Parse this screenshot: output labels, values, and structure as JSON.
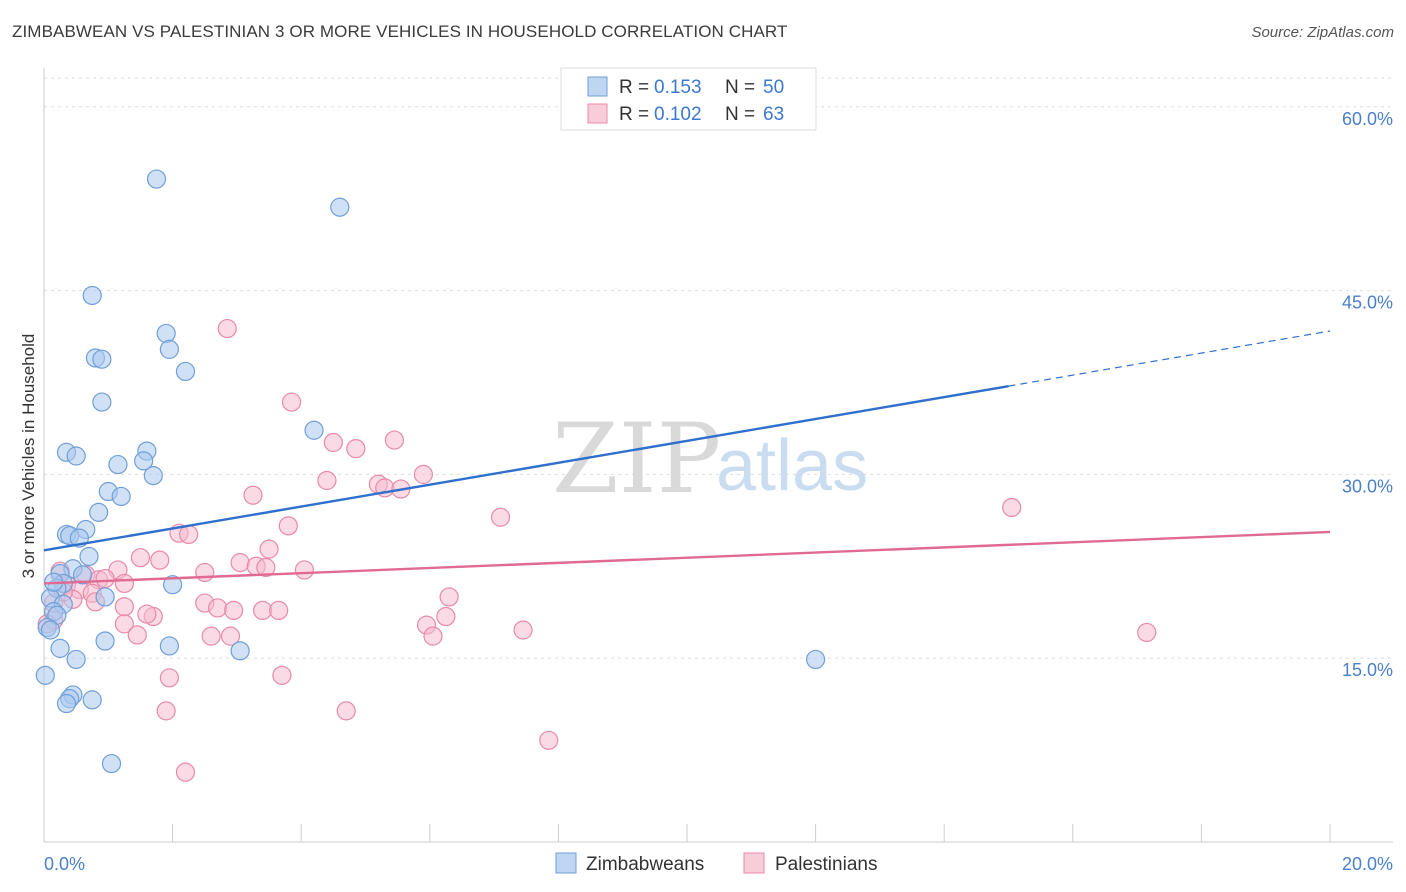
{
  "title": "ZIMBABWEAN VS PALESTINIAN 3 OR MORE VEHICLES IN HOUSEHOLD CORRELATION CHART",
  "source": "Source: ZipAtlas.com",
  "watermark": {
    "zip": "ZIP",
    "atlas": "atlas"
  },
  "colors": {
    "blue_fill": "#a9c8ef",
    "blue_stroke": "#6f9fd8",
    "blue_line": "#2f6fce",
    "pink_fill": "#f6bccd",
    "pink_stroke": "#e88aa8",
    "pink_line": "#e06a92",
    "grid": "#dddddd",
    "tick_text": "#4a7fc9"
  },
  "legend": {
    "rows": [
      {
        "r_label": "R = ",
        "r_value": "0.153",
        "n_label": "N = ",
        "n_value": "50",
        "color": "blue"
      },
      {
        "r_label": "R = ",
        "r_value": "0.102",
        "n_label": "N = ",
        "n_value": "63",
        "color": "pink"
      }
    ]
  },
  "chart_data": {
    "type": "scatter",
    "title": "ZIMBABWEAN VS PALESTINIAN 3 OR MORE VEHICLES IN HOUSEHOLD CORRELATION CHART",
    "xlabel": "",
    "ylabel": "3 or more Vehicles in Household",
    "xlim": [
      0,
      20
    ],
    "ylim": [
      0,
      63
    ],
    "x_tick_labels": [
      "0.0%",
      "20.0%"
    ],
    "y_ticks": [
      15,
      30,
      45,
      60
    ],
    "y_tick_labels": [
      "15.0%",
      "30.0%",
      "45.0%",
      "60.0%"
    ],
    "grid": true,
    "legend_position": "top-center",
    "series": [
      {
        "name": "Zimbabweans",
        "color": "blue",
        "points": [
          [
            1.75,
            54.1
          ],
          [
            4.6,
            51.8
          ],
          [
            0.75,
            44.6
          ],
          [
            1.9,
            41.5
          ],
          [
            1.95,
            40.2
          ],
          [
            0.8,
            39.5
          ],
          [
            0.9,
            39.4
          ],
          [
            2.2,
            38.4
          ],
          [
            0.9,
            35.9
          ],
          [
            4.2,
            33.6
          ],
          [
            0.35,
            31.8
          ],
          [
            1.6,
            31.9
          ],
          [
            0.5,
            31.5
          ],
          [
            1.55,
            31.1
          ],
          [
            1.15,
            30.8
          ],
          [
            1.7,
            29.9
          ],
          [
            1.0,
            28.6
          ],
          [
            1.2,
            28.2
          ],
          [
            0.85,
            26.9
          ],
          [
            0.65,
            25.5
          ],
          [
            0.35,
            25.1
          ],
          [
            0.4,
            25.0
          ],
          [
            0.55,
            24.8
          ],
          [
            0.7,
            23.3
          ],
          [
            0.45,
            22.3
          ],
          [
            0.25,
            21.9
          ],
          [
            0.3,
            21.1
          ],
          [
            0.2,
            20.7
          ],
          [
            2.0,
            21.0
          ],
          [
            0.1,
            19.9
          ],
          [
            0.95,
            20.0
          ],
          [
            0.3,
            19.4
          ],
          [
            0.15,
            18.8
          ],
          [
            0.2,
            18.5
          ],
          [
            0.05,
            17.5
          ],
          [
            0.1,
            17.3
          ],
          [
            0.95,
            16.4
          ],
          [
            1.95,
            16.0
          ],
          [
            0.25,
            15.8
          ],
          [
            3.05,
            15.6
          ],
          [
            0.5,
            14.9
          ],
          [
            12.0,
            14.9
          ],
          [
            0.02,
            13.6
          ],
          [
            0.45,
            12.0
          ],
          [
            0.4,
            11.7
          ],
          [
            0.75,
            11.6
          ],
          [
            0.35,
            11.3
          ],
          [
            1.05,
            6.4
          ],
          [
            0.15,
            21.2
          ],
          [
            0.6,
            21.8
          ]
        ]
      },
      {
        "name": "Palestinians",
        "color": "pink",
        "points": [
          [
            2.85,
            41.9
          ],
          [
            3.85,
            35.9
          ],
          [
            4.5,
            32.6
          ],
          [
            4.85,
            32.1
          ],
          [
            5.45,
            32.8
          ],
          [
            4.4,
            29.5
          ],
          [
            5.2,
            29.2
          ],
          [
            5.3,
            28.9
          ],
          [
            5.55,
            28.8
          ],
          [
            5.9,
            30.0
          ],
          [
            3.25,
            28.3
          ],
          [
            7.1,
            26.5
          ],
          [
            15.05,
            27.3
          ],
          [
            3.8,
            25.8
          ],
          [
            2.1,
            25.2
          ],
          [
            2.25,
            25.1
          ],
          [
            3.5,
            23.9
          ],
          [
            1.5,
            23.2
          ],
          [
            1.8,
            23.0
          ],
          [
            3.05,
            22.8
          ],
          [
            3.3,
            22.5
          ],
          [
            3.45,
            22.4
          ],
          [
            1.15,
            22.2
          ],
          [
            2.5,
            22.0
          ],
          [
            4.05,
            22.2
          ],
          [
            0.25,
            22.1
          ],
          [
            0.65,
            21.8
          ],
          [
            0.85,
            21.4
          ],
          [
            0.95,
            21.5
          ],
          [
            1.25,
            21.1
          ],
          [
            0.35,
            21.0
          ],
          [
            0.55,
            20.6
          ],
          [
            0.75,
            20.3
          ],
          [
            6.3,
            20.0
          ],
          [
            0.45,
            19.8
          ],
          [
            0.8,
            19.6
          ],
          [
            2.5,
            19.5
          ],
          [
            1.25,
            19.2
          ],
          [
            2.7,
            19.1
          ],
          [
            2.95,
            18.9
          ],
          [
            3.4,
            18.9
          ],
          [
            3.65,
            18.9
          ],
          [
            1.7,
            18.4
          ],
          [
            6.25,
            18.4
          ],
          [
            0.15,
            18.1
          ],
          [
            1.25,
            17.8
          ],
          [
            5.95,
            17.7
          ],
          [
            7.45,
            17.3
          ],
          [
            17.15,
            17.1
          ],
          [
            1.45,
            16.9
          ],
          [
            2.6,
            16.8
          ],
          [
            2.9,
            16.8
          ],
          [
            6.05,
            16.8
          ],
          [
            0.05,
            17.8
          ],
          [
            3.7,
            13.6
          ],
          [
            1.95,
            13.4
          ],
          [
            1.9,
            10.7
          ],
          [
            4.7,
            10.7
          ],
          [
            7.85,
            8.3
          ],
          [
            2.2,
            5.7
          ],
          [
            0.3,
            20.4
          ],
          [
            0.15,
            19.5
          ],
          [
            1.6,
            18.6
          ]
        ]
      }
    ],
    "trend_lines": [
      {
        "series": "Zimbabweans",
        "x0": 0,
        "y0": 23.8,
        "x1": 15.0,
        "y1": 37.2,
        "dashed_x0": 15.0,
        "dashed_x1": 20.0,
        "dashed_y1": 41.7
      },
      {
        "series": "Palestinians",
        "x0": 0,
        "y0": 21.1,
        "x1": 20.0,
        "y1": 25.3
      }
    ]
  },
  "bottom_legend": [
    {
      "label": "Zimbabweans",
      "color": "blue"
    },
    {
      "label": "Palestinians",
      "color": "pink"
    }
  ]
}
